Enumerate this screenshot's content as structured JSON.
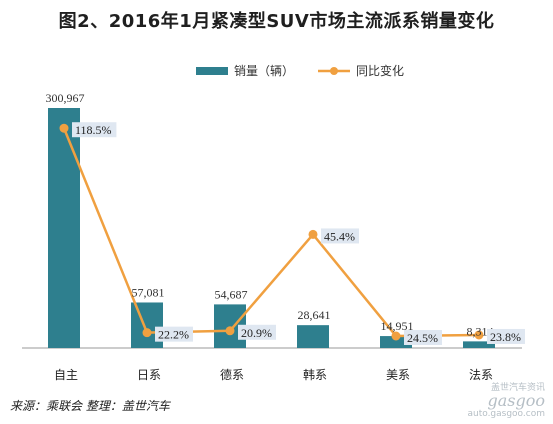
{
  "title": "图2、2016年1月紧凑型SUV市场主流派系销量变化",
  "legend": {
    "bar_label": "销量（辆）",
    "line_label": "同比变化"
  },
  "footer": "来源：乘联会  整理：盖世汽车",
  "watermark": {
    "line1": "盖世汽车资讯",
    "logo": "gasgoo",
    "url": "auto.gasgoo.com"
  },
  "colors": {
    "bar": "#2e7f8e",
    "line": "#f0a040",
    "label_bg": "#dfe7f1"
  },
  "chart_data": {
    "type": "bar",
    "categories": [
      "自主",
      "日系",
      "德系",
      "韩系",
      "美系",
      "法系"
    ],
    "series": [
      {
        "name": "销量（辆）",
        "type": "bar",
        "values": [
          300967,
          57081,
          54687,
          28641,
          14951,
          8314
        ],
        "labels": [
          "300,967",
          "57,081",
          "54,687",
          "28,641",
          "14,951",
          "8,314"
        ]
      },
      {
        "name": "同比变化",
        "type": "line",
        "values": [
          118.5,
          -22.2,
          -20.9,
          45.4,
          -24.5,
          -23.8
        ],
        "labels": [
          "118.5%",
          "22.2%",
          "20.9%",
          "45.4%",
          "24.5%",
          "23.8%"
        ]
      }
    ],
    "xlabel": "",
    "ylabel": ""
  }
}
